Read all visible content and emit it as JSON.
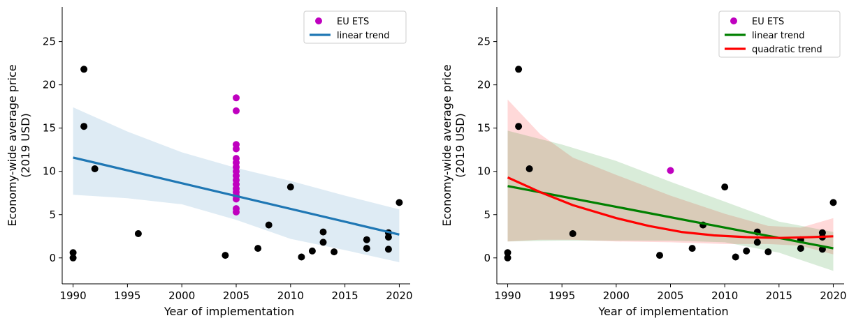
{
  "colors": {
    "eu": "#bf00bf",
    "other": "#000000",
    "blue": "#1f77b4",
    "blue_band": "#1f77b4",
    "green": "#008000",
    "red": "#ff0000"
  },
  "chart_data": [
    {
      "type": "scatter",
      "xlabel": "Year of implementation",
      "ylabel": "Economy-wide average price\n(2019 USD)",
      "xlim": [
        1989,
        2021
      ],
      "ylim": [
        -3,
        29
      ],
      "xticks": [
        1990,
        1995,
        2000,
        2005,
        2010,
        2015,
        2020
      ],
      "yticks": [
        0,
        5,
        10,
        15,
        20,
        25
      ],
      "grid": false,
      "legend_position": "top-right",
      "legend": [
        "EU ETS",
        "linear trend"
      ],
      "series": [
        {
          "name": "EU ETS",
          "kind": "points",
          "color": "eu",
          "points": [
            [
              2005,
              18.5
            ],
            [
              2005,
              17.0
            ],
            [
              2005,
              13.1
            ],
            [
              2005,
              12.6
            ],
            [
              2005,
              11.5
            ],
            [
              2005,
              11.0
            ],
            [
              2005,
              10.5
            ],
            [
              2005,
              10.0
            ],
            [
              2005,
              9.5
            ],
            [
              2005,
              9.0
            ],
            [
              2005,
              8.5
            ],
            [
              2005,
              8.0
            ],
            [
              2005,
              7.6
            ],
            [
              2005,
              7.2
            ],
            [
              2005,
              6.8
            ],
            [
              2005,
              5.7
            ],
            [
              2005,
              5.3
            ]
          ]
        },
        {
          "name": "",
          "kind": "points",
          "color": "other",
          "points": [
            [
              1990,
              0.6
            ],
            [
              1990,
              0.0
            ],
            [
              1991,
              21.8
            ],
            [
              1991,
              15.2
            ],
            [
              1992,
              10.3
            ],
            [
              1996,
              2.8
            ],
            [
              2004,
              0.3
            ],
            [
              2007,
              1.1
            ],
            [
              2008,
              3.8
            ],
            [
              2010,
              8.2
            ],
            [
              2011,
              0.1
            ],
            [
              2012,
              0.8
            ],
            [
              2013,
              3.0
            ],
            [
              2013,
              1.8
            ],
            [
              2014,
              0.7
            ],
            [
              2017,
              2.1
            ],
            [
              2017,
              1.1
            ],
            [
              2019,
              2.9
            ],
            [
              2019,
              2.4
            ],
            [
              2019,
              1.0
            ],
            [
              2020,
              6.4
            ]
          ]
        },
        {
          "name": "linear trend",
          "kind": "line",
          "color": "blue",
          "x": [
            1990,
            2020
          ],
          "y": [
            11.6,
            2.7
          ]
        },
        {
          "name": "",
          "kind": "band",
          "color": "blue_band",
          "opacity": 0.15,
          "x": [
            1990,
            1995,
            2000,
            2005,
            2010,
            2015,
            2020
          ],
          "upper": [
            17.4,
            14.6,
            12.2,
            10.4,
            8.9,
            7.2,
            5.6
          ],
          "lower": [
            7.3,
            6.9,
            6.2,
            4.4,
            2.2,
            0.9,
            -0.5
          ]
        }
      ]
    },
    {
      "type": "scatter",
      "xlabel": "Year of implementation",
      "ylabel": "Economy-wide average price\n(2019 USD)",
      "xlim": [
        1989,
        2021
      ],
      "ylim": [
        -3,
        29
      ],
      "xticks": [
        1990,
        1995,
        2000,
        2005,
        2010,
        2015,
        2020
      ],
      "yticks": [
        0,
        5,
        10,
        15,
        20,
        25
      ],
      "grid": false,
      "legend_position": "top-right",
      "legend": [
        "EU ETS",
        "linear trend",
        "quadratic trend"
      ],
      "series": [
        {
          "name": "EU ETS",
          "kind": "points",
          "color": "eu",
          "points": [
            [
              2005,
              10.1
            ]
          ]
        },
        {
          "name": "",
          "kind": "points",
          "color": "other",
          "points": [
            [
              1990,
              0.6
            ],
            [
              1990,
              0.0
            ],
            [
              1991,
              21.8
            ],
            [
              1991,
              15.2
            ],
            [
              1992,
              10.3
            ],
            [
              1996,
              2.8
            ],
            [
              2004,
              0.3
            ],
            [
              2007,
              1.1
            ],
            [
              2008,
              3.8
            ],
            [
              2010,
              8.2
            ],
            [
              2011,
              0.1
            ],
            [
              2012,
              0.8
            ],
            [
              2013,
              3.0
            ],
            [
              2013,
              1.8
            ],
            [
              2014,
              0.7
            ],
            [
              2017,
              2.1
            ],
            [
              2017,
              1.1
            ],
            [
              2019,
              2.9
            ],
            [
              2019,
              2.4
            ],
            [
              2019,
              1.0
            ],
            [
              2020,
              6.4
            ]
          ]
        },
        {
          "name": "",
          "kind": "band",
          "color": "red",
          "opacity": 0.15,
          "x": [
            1990,
            1993,
            1996,
            2000,
            2005,
            2010,
            2014,
            2017,
            2020
          ],
          "upper": [
            18.3,
            14.3,
            11.6,
            9.6,
            7.2,
            5.1,
            3.7,
            3.5,
            4.6
          ],
          "lower": [
            1.9,
            2.1,
            2.1,
            1.9,
            1.8,
            1.6,
            1.6,
            1.4,
            0.4
          ]
        },
        {
          "name": "",
          "kind": "band",
          "color": "green",
          "opacity": 0.15,
          "x": [
            1990,
            1995,
            2000,
            2005,
            2010,
            2015,
            2020
          ],
          "upper": [
            14.7,
            13.1,
            11.2,
            8.8,
            6.5,
            4.2,
            3.0
          ],
          "lower": [
            1.9,
            2.0,
            2.0,
            2.0,
            1.8,
            0.6,
            -1.5
          ]
        },
        {
          "name": "linear trend",
          "kind": "line",
          "color": "green",
          "x": [
            1990,
            2020
          ],
          "y": [
            8.3,
            1.1
          ]
        },
        {
          "name": "quadratic trend",
          "kind": "curve",
          "color": "red",
          "x": [
            1990,
            1993,
            1996,
            2000,
            2003,
            2006,
            2009,
            2012,
            2015,
            2018,
            2020
          ],
          "y": [
            9.3,
            7.6,
            6.1,
            4.6,
            3.7,
            3.0,
            2.6,
            2.4,
            2.3,
            2.4,
            2.5
          ]
        }
      ]
    }
  ]
}
